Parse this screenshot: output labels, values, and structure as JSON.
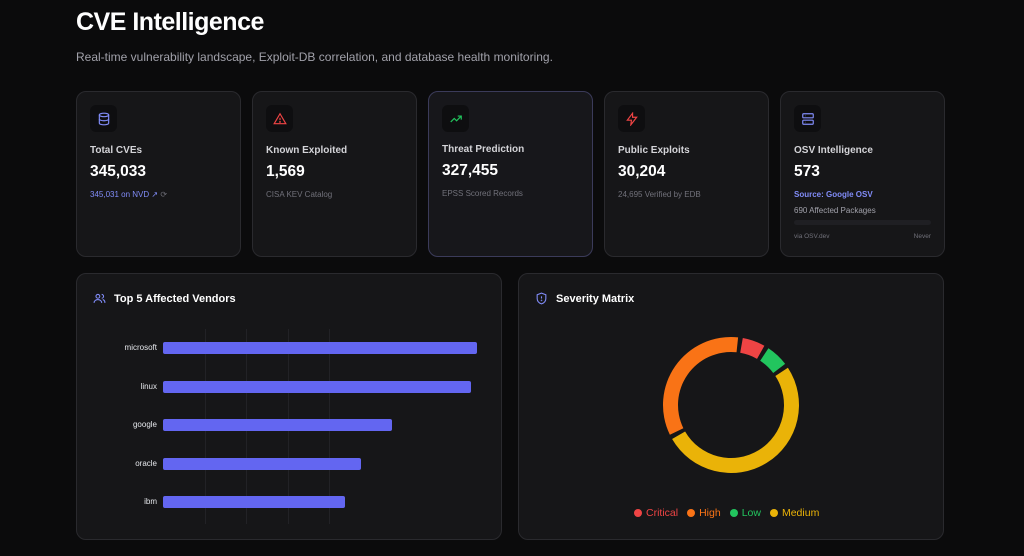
{
  "header": {
    "title": "CVE Intelligence",
    "subtitle": "Real-time vulnerability landscape, Exploit-DB correlation, and database health monitoring."
  },
  "cards": [
    {
      "label": "Total CVEs",
      "value": "345,033",
      "sub": "345,031 on NVD ↗",
      "icon": "database-icon",
      "color": "#818cf8"
    },
    {
      "label": "Known Exploited",
      "value": "1,569",
      "sub": "CISA KEV Catalog",
      "icon": "alert-triangle-icon",
      "color": "#ef4444"
    },
    {
      "label": "Threat Prediction",
      "value": "327,455",
      "sub": "EPSS Scored Records",
      "icon": "trending-up-icon",
      "color": "#22c55e"
    },
    {
      "label": "Public Exploits",
      "value": "30,204",
      "sub": "24,695 Verified by EDB",
      "icon": "zap-icon",
      "color": "#ef4444"
    },
    {
      "label": "OSV Intelligence",
      "value": "573",
      "sub": "Source: Google OSV",
      "sub2": "690 Affected Packages",
      "foot_left": "via OSV.dev",
      "foot_right": "Never",
      "icon": "server-icon",
      "color": "#818cf8"
    }
  ],
  "vendors_panel": {
    "title": "Top 5 Affected Vendors",
    "icon": "users-icon"
  },
  "severity_panel": {
    "title": "Severity Matrix",
    "icon": "shield-icon"
  },
  "chart_data": [
    {
      "type": "bar",
      "orientation": "horizontal",
      "categories": [
        "microsoft",
        "linux",
        "google",
        "oracle",
        "ibm"
      ],
      "values": [
        100,
        98,
        73,
        63,
        58
      ],
      "color": "#6366f1"
    },
    {
      "type": "pie",
      "donut": true,
      "categories": [
        "Critical",
        "High",
        "Low",
        "Medium"
      ],
      "values": [
        6.5,
        35,
        6.5,
        52
      ],
      "colors": [
        "#ef4444",
        "#f97316",
        "#22c55e",
        "#eab308"
      ]
    }
  ]
}
